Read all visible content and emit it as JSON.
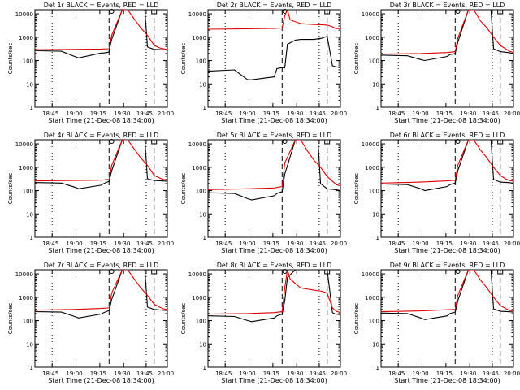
{
  "colors": {
    "events": "#000000",
    "lld": "#e00000",
    "axes": "#000000",
    "background": "#ffffff"
  },
  "chart_data": [
    {
      "type": "line",
      "title": "Det 1r BLACK = Events, RED = LLD",
      "xlabel": "Start Time (21-Dec-08 18:34:00)",
      "ylabel": "Counts/sec",
      "yscale": "log",
      "ylim": [
        1,
        10000
      ],
      "ytick_labels": [
        "1",
        "10",
        "100",
        "1000",
        "10000"
      ],
      "xtick_labels": [
        "18:45",
        "19:00",
        "19:15",
        "19:30",
        "19:45",
        "20:00"
      ],
      "series": [
        {
          "name": "Events",
          "x": [
            0,
            0.02,
            0.2,
            0.3,
            0.33,
            0.5,
            0.52,
            0.56,
            0.56,
            0.58,
            0.66,
            0.7,
            0.73,
            0.8,
            0.82,
            0.83,
            0.85,
            0.9,
            0.96,
            1.0,
            1.0
          ],
          "y": [
            270,
            262,
            250,
            150,
            130,
            210,
            210,
            230,
            260,
            800,
            15000,
            15000,
            15000,
            15000,
            15000,
            15000,
            380,
            300,
            290,
            280,
            280
          ]
        },
        {
          "name": "LLD",
          "x": [
            0,
            0.02,
            0.3,
            0.5,
            0.56,
            0.58,
            0.66,
            0.7,
            0.75,
            0.8,
            0.85,
            0.9,
            0.94,
            0.97,
            1.0
          ],
          "y": [
            300,
            290,
            300,
            310,
            320,
            1200,
            15000,
            15000,
            6000,
            2500,
            1200,
            450,
            350,
            320,
            300
          ]
        }
      ]
    },
    {
      "type": "line",
      "title": "Det 2r BLACK = Events, RED = LLD",
      "xlabel": "Start Time (21-Dec-08 18:34:00)",
      "ylabel": "Counts/sec",
      "yscale": "log",
      "ylim": [
        1,
        10000
      ],
      "ytick_labels": [
        "1",
        "10",
        "100",
        "1000",
        "10000"
      ],
      "xtick_labels": [
        "18:45",
        "19:00",
        "19:15",
        "19:30",
        "19:45",
        "20:00"
      ],
      "series": [
        {
          "name": "Events",
          "x": [
            0,
            0.2,
            0.3,
            0.33,
            0.5,
            0.52,
            0.56,
            0.58,
            0.6,
            0.66,
            0.7,
            0.8,
            0.86,
            0.9,
            0.94,
            0.96,
            1.0
          ],
          "y": [
            35,
            40,
            15,
            15,
            20,
            45,
            50,
            48,
            500,
            750,
            800,
            800,
            900,
            1100,
            60,
            55,
            50
          ]
        },
        {
          "name": "LLD",
          "x": [
            0,
            0.3,
            0.5,
            0.56,
            0.58,
            0.6,
            0.62,
            0.7,
            0.8,
            0.86,
            0.9,
            0.94,
            0.96,
            1.0
          ],
          "y": [
            2200,
            2300,
            2400,
            2500,
            8000,
            15000,
            5500,
            3800,
            3500,
            3400,
            3300,
            2800,
            2400,
            2300
          ]
        }
      ]
    },
    {
      "type": "line",
      "title": "Det 3r BLACK = Events, RED = LLD",
      "xlabel": "Start Time (21-Dec-08 18:34:00)",
      "ylabel": "Counts/sec",
      "yscale": "log",
      "ylim": [
        1,
        10000
      ],
      "ytick_labels": [
        "1",
        "10",
        "100",
        "1000",
        "10000"
      ],
      "xtick_labels": [
        "18:45",
        "19:00",
        "19:15",
        "19:30",
        "19:45",
        "20:00"
      ],
      "series": [
        {
          "name": "Events",
          "x": [
            0,
            0.02,
            0.2,
            0.3,
            0.33,
            0.5,
            0.52,
            0.56,
            0.58,
            0.66,
            0.7,
            0.8,
            0.83,
            0.85,
            0.9,
            0.96,
            1.0
          ],
          "y": [
            170,
            170,
            160,
            110,
            100,
            150,
            180,
            200,
            600,
            15000,
            15000,
            15000,
            15000,
            320,
            240,
            220,
            200
          ]
        },
        {
          "name": "LLD",
          "x": [
            0,
            0.3,
            0.5,
            0.56,
            0.58,
            0.66,
            0.7,
            0.75,
            0.8,
            0.85,
            0.9,
            0.94,
            0.97,
            1.0
          ],
          "y": [
            190,
            200,
            220,
            240,
            900,
            15000,
            15000,
            5000,
            2500,
            1000,
            450,
            320,
            250,
            220
          ]
        }
      ]
    },
    {
      "type": "line",
      "title": "Det 4r BLACK = Events, RED = LLD",
      "xlabel": "Start Time (21-Dec-08 18:34:00)",
      "ylabel": "Counts/sec",
      "yscale": "log",
      "ylim": [
        1,
        10000
      ],
      "ytick_labels": [
        "1",
        "10",
        "100",
        "1000",
        "10000"
      ],
      "xtick_labels": [
        "18:45",
        "19:00",
        "19:15",
        "19:30",
        "19:45",
        "20:00"
      ],
      "series": [
        {
          "name": "Events",
          "x": [
            0,
            0.02,
            0.2,
            0.3,
            0.33,
            0.5,
            0.52,
            0.56,
            0.58,
            0.66,
            0.7,
            0.8,
            0.83,
            0.85,
            0.9,
            0.96,
            1.0
          ],
          "y": [
            220,
            220,
            210,
            140,
            120,
            170,
            200,
            250,
            700,
            15000,
            15000,
            15000,
            15000,
            320,
            270,
            260,
            250
          ]
        },
        {
          "name": "LLD",
          "x": [
            0,
            0.3,
            0.5,
            0.56,
            0.58,
            0.66,
            0.7,
            0.75,
            0.8,
            0.85,
            0.9,
            0.94,
            0.97,
            1.0
          ],
          "y": [
            260,
            270,
            280,
            300,
            1200,
            15000,
            15000,
            6000,
            2500,
            1200,
            450,
            350,
            300,
            280
          ]
        }
      ]
    },
    {
      "type": "line",
      "title": "Det 5r BLACK = Events, RED = LLD",
      "xlabel": "Start Time (21-Dec-08 18:34:00)",
      "ylabel": "Counts/sec",
      "yscale": "log",
      "ylim": [
        1,
        10000
      ],
      "ytick_labels": [
        "1",
        "10",
        "100",
        "1000",
        "10000"
      ],
      "xtick_labels": [
        "18:45",
        "19:00",
        "19:15",
        "19:30",
        "19:45",
        "20:00"
      ],
      "series": [
        {
          "name": "Events",
          "x": [
            0,
            0.02,
            0.2,
            0.3,
            0.33,
            0.5,
            0.52,
            0.56,
            0.58,
            0.66,
            0.7,
            0.8,
            0.83,
            0.85,
            0.9,
            0.96,
            1.0
          ],
          "y": [
            80,
            80,
            75,
            45,
            40,
            60,
            75,
            90,
            500,
            15000,
            15000,
            15000,
            15000,
            200,
            120,
            110,
            100
          ]
        },
        {
          "name": "LLD",
          "x": [
            0,
            0.3,
            0.5,
            0.56,
            0.58,
            0.66,
            0.7,
            0.75,
            0.8,
            0.85,
            0.9,
            0.94,
            0.97,
            1.0
          ],
          "y": [
            110,
            120,
            130,
            150,
            1500,
            15000,
            15000,
            5000,
            2000,
            1000,
            400,
            250,
            180,
            160
          ]
        }
      ]
    },
    {
      "type": "line",
      "title": "Det 6r BLACK = Events, RED = LLD",
      "xlabel": "Start Time (21-Dec-08 18:34:00)",
      "ylabel": "Counts/sec",
      "yscale": "log",
      "ylim": [
        1,
        10000
      ],
      "ytick_labels": [
        "1",
        "10",
        "100",
        "1000",
        "10000"
      ],
      "xtick_labels": [
        "18:45",
        "19:00",
        "19:15",
        "19:30",
        "19:45",
        "20:00"
      ],
      "series": [
        {
          "name": "Events",
          "x": [
            0,
            0.02,
            0.2,
            0.3,
            0.33,
            0.5,
            0.52,
            0.56,
            0.58,
            0.66,
            0.7,
            0.8,
            0.83,
            0.85,
            0.9,
            0.96,
            1.0
          ],
          "y": [
            190,
            190,
            180,
            120,
            100,
            150,
            180,
            210,
            700,
            15000,
            15000,
            15000,
            15000,
            300,
            230,
            220,
            210
          ]
        },
        {
          "name": "LLD",
          "x": [
            0,
            0.3,
            0.5,
            0.56,
            0.58,
            0.66,
            0.7,
            0.75,
            0.8,
            0.85,
            0.9,
            0.94,
            0.97,
            1.0
          ],
          "y": [
            210,
            230,
            260,
            280,
            1200,
            15000,
            15000,
            5500,
            2500,
            1000,
            450,
            320,
            270,
            250
          ]
        }
      ]
    },
    {
      "type": "line",
      "title": "Det 7r BLACK = Events, RED = LLD",
      "xlabel": "Start Time (21-Dec-08 18:34:00)",
      "ylabel": "Counts/sec",
      "yscale": "log",
      "ylim": [
        1,
        10000
      ],
      "ytick_labels": [
        "1",
        "10",
        "100",
        "1000",
        "10000"
      ],
      "xtick_labels": [
        "18:45",
        "19:00",
        "19:15",
        "19:30",
        "19:45",
        "20:00"
      ],
      "series": [
        {
          "name": "Events",
          "x": [
            0,
            0.02,
            0.2,
            0.3,
            0.33,
            0.5,
            0.52,
            0.56,
            0.58,
            0.66,
            0.7,
            0.8,
            0.83,
            0.85,
            0.9,
            0.96,
            1.0
          ],
          "y": [
            250,
            240,
            230,
            150,
            130,
            190,
            220,
            270,
            800,
            15000,
            15000,
            15000,
            15000,
            380,
            300,
            280,
            270
          ]
        },
        {
          "name": "LLD",
          "x": [
            0,
            0.3,
            0.5,
            0.56,
            0.58,
            0.66,
            0.7,
            0.75,
            0.8,
            0.85,
            0.9,
            0.94,
            0.97,
            1.0
          ],
          "y": [
            280,
            300,
            330,
            350,
            1500,
            15000,
            15000,
            6000,
            2500,
            1200,
            500,
            380,
            320,
            300
          ]
        }
      ]
    },
    {
      "type": "line",
      "title": "Det 8r BLACK = Events, RED = LLD",
      "xlabel": "Start Time (21-Dec-08 18:34:00)",
      "ylabel": "Counts/sec",
      "yscale": "log",
      "ylim": [
        1,
        10000
      ],
      "ytick_labels": [
        "1",
        "10",
        "100",
        "1000",
        "10000"
      ],
      "xtick_labels": [
        "18:45",
        "19:00",
        "19:15",
        "19:30",
        "19:45",
        "20:00"
      ],
      "series": [
        {
          "name": "Events",
          "x": [
            0,
            0.02,
            0.2,
            0.3,
            0.33,
            0.5,
            0.52,
            0.56,
            0.58,
            0.6,
            0.66,
            0.7,
            0.8,
            0.86,
            0.9,
            0.94,
            0.96,
            1.0
          ],
          "y": [
            160,
            160,
            150,
            100,
            90,
            130,
            160,
            190,
            700,
            7000,
            15000,
            15000,
            15000,
            15000,
            15000,
            220,
            190,
            180
          ]
        },
        {
          "name": "LLD",
          "x": [
            0,
            0.3,
            0.5,
            0.56,
            0.58,
            0.6,
            0.62,
            0.7,
            0.8,
            0.86,
            0.9,
            0.94,
            0.97,
            1.0
          ],
          "y": [
            190,
            200,
            220,
            240,
            2500,
            15000,
            6000,
            2500,
            2000,
            1800,
            1500,
            350,
            250,
            220
          ]
        }
      ]
    },
    {
      "type": "line",
      "title": "Det 9r BLACK = Events, RED = LLD",
      "xlabel": "Start Time (21-Dec-08 18:34:00)",
      "ylabel": "Counts/sec",
      "yscale": "log",
      "ylim": [
        1,
        10000
      ],
      "ytick_labels": [
        "1",
        "10",
        "100",
        "1000",
        "10000"
      ],
      "xtick_labels": [
        "18:45",
        "19:00",
        "19:15",
        "19:30",
        "19:45",
        "20:00"
      ],
      "series": [
        {
          "name": "Events",
          "x": [
            0,
            0.02,
            0.2,
            0.3,
            0.33,
            0.5,
            0.52,
            0.56,
            0.58,
            0.66,
            0.7,
            0.8,
            0.83,
            0.85,
            0.9,
            0.96,
            1.0
          ],
          "y": [
            210,
            210,
            200,
            130,
            110,
            160,
            200,
            230,
            700,
            15000,
            15000,
            15000,
            15000,
            320,
            250,
            240,
            230
          ]
        },
        {
          "name": "LLD",
          "x": [
            0,
            0.3,
            0.5,
            0.56,
            0.58,
            0.66,
            0.7,
            0.75,
            0.8,
            0.85,
            0.9,
            0.94,
            0.97,
            1.0
          ],
          "y": [
            240,
            260,
            290,
            300,
            1200,
            15000,
            15000,
            5500,
            2500,
            1000,
            450,
            330,
            270,
            260
          ]
        }
      ]
    }
  ]
}
